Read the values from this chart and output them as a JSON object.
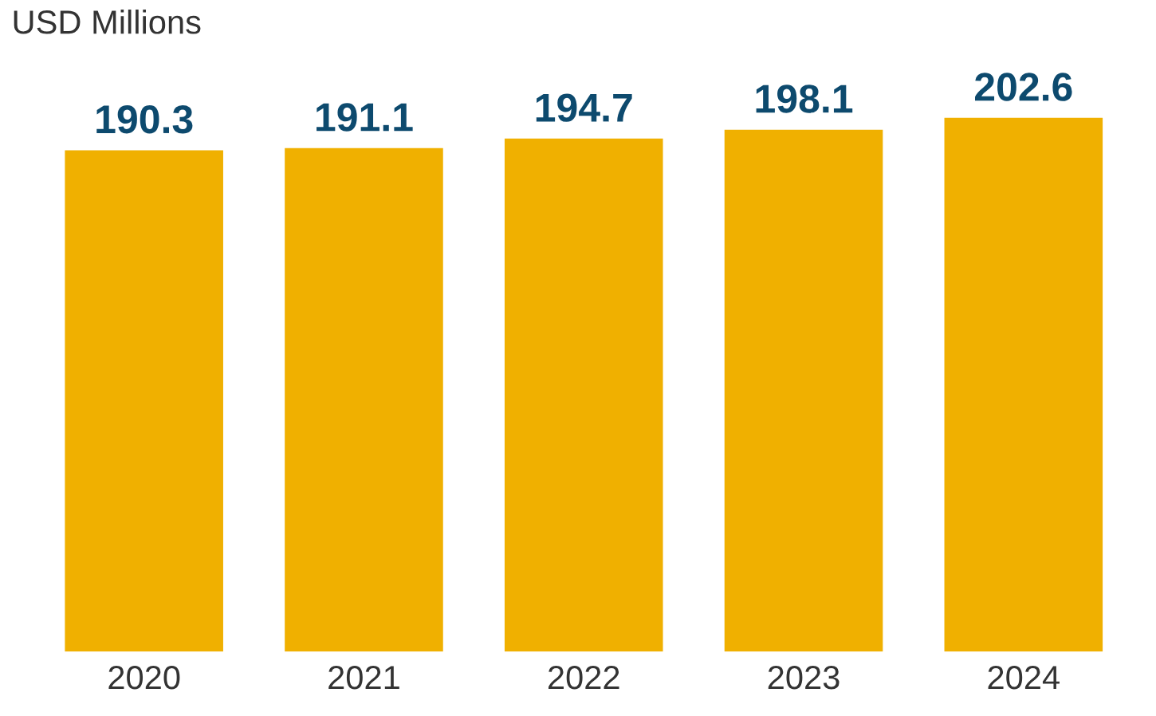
{
  "chart_data": {
    "type": "bar",
    "title": "USD Millions",
    "categories": [
      "2020",
      "2021",
      "2022",
      "2023",
      "2024"
    ],
    "values": [
      190.3,
      191.1,
      194.7,
      198.1,
      202.6
    ],
    "color": "#f0b000",
    "data_labels": true,
    "grid": false,
    "legend": false
  }
}
